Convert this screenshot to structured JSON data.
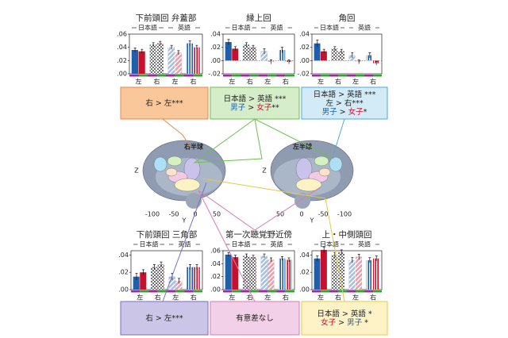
{
  "chart_data": [
    {
      "type": "bar",
      "title": "下前頭回 弁蓋部",
      "groups": [
        "日本語",
        "英語"
      ],
      "categories": [
        "左",
        "右",
        "左",
        "右"
      ],
      "series": [
        {
          "color": "#1f5fa8",
          "values": [
            0.036,
            0.044,
            0.04,
            0.046
          ],
          "errors": [
            0.003,
            0.003,
            0.003,
            0.004
          ]
        },
        {
          "color": "#c8102e",
          "values": [
            0.034,
            0.046,
            0.032,
            0.04
          ],
          "errors": [
            0.003,
            0.003,
            0.003,
            0.003
          ]
        }
      ],
      "ylim": [
        0,
        0.06
      ],
      "yticks": [
        {
          "value": 0,
          "label": ".00"
        },
        {
          "value": 0.02,
          "label": ".02"
        },
        {
          "value": 0.04,
          "label": ".04"
        },
        {
          "value": 0.06,
          "label": ".06"
        }
      ]
    },
    {
      "type": "bar",
      "title": "縁上回",
      "groups": [
        "日本語",
        "英語"
      ],
      "categories": [
        "左",
        "右",
        "左",
        "右"
      ],
      "series": [
        {
          "color": "#1f5fa8",
          "values": [
            0.028,
            0.024,
            0.014,
            0.016
          ],
          "errors": [
            0.004,
            0.003,
            0.004,
            0.004
          ]
        },
        {
          "color": "#c8102e",
          "values": [
            0.018,
            0.02,
            -0.002,
            -0.002
          ],
          "errors": [
            0.003,
            0.003,
            0.003,
            0.003
          ]
        }
      ],
      "ylim": [
        -0.02,
        0.04
      ],
      "yticks": [
        {
          "value": -0.02,
          "label": "-.02"
        },
        {
          "value": 0,
          "label": ".00"
        },
        {
          "value": 0.02,
          "label": ".02"
        },
        {
          "value": 0.04,
          "label": ".04"
        }
      ]
    },
    {
      "type": "bar",
      "title": "角回",
      "groups": [
        "日本語",
        "英語"
      ],
      "categories": [
        "左",
        "右",
        "左",
        "右"
      ],
      "series": [
        {
          "color": "#1f5fa8",
          "values": [
            0.026,
            0.018,
            0.008,
            0.008
          ],
          "errors": [
            0.005,
            0.003,
            0.004,
            0.004
          ]
        },
        {
          "color": "#c8102e",
          "values": [
            0.014,
            0.014,
            -0.002,
            -0.004
          ],
          "errors": [
            0.003,
            0.003,
            0.003,
            0.003
          ]
        }
      ],
      "ylim": [
        -0.02,
        0.04
      ],
      "yticks": [
        {
          "value": -0.02,
          "label": "-.02"
        },
        {
          "value": 0,
          "label": ".00"
        },
        {
          "value": 0.02,
          "label": ".02"
        },
        {
          "value": 0.04,
          "label": ".04"
        }
      ]
    },
    {
      "type": "bar",
      "title": "下前頭回 三角部",
      "groups": [
        "日本語",
        "英語"
      ],
      "categories": [
        "左",
        "右",
        "左",
        "右"
      ],
      "series": [
        {
          "color": "#1f5fa8",
          "values": [
            0.015,
            0.026,
            0.015,
            0.026
          ],
          "errors": [
            0.004,
            0.003,
            0.004,
            0.003
          ]
        },
        {
          "color": "#c8102e",
          "values": [
            0.02,
            0.029,
            0.01,
            0.026
          ],
          "errors": [
            0.003,
            0.003,
            0.003,
            0.003
          ]
        }
      ],
      "ylim": [
        0,
        0.045
      ],
      "yticks": [
        {
          "value": 0,
          "label": ".00"
        },
        {
          "value": 0.02,
          "label": ".02"
        },
        {
          "value": 0.04,
          "label": ".04"
        }
      ]
    },
    {
      "type": "bar",
      "title": "第一次聴覚野近傍",
      "groups": [
        "日本語",
        "英語"
      ],
      "categories": [
        "左",
        "右",
        "左",
        "右"
      ],
      "series": [
        {
          "color": "#1f5fa8",
          "values": [
            0.054,
            0.052,
            0.052,
            0.048
          ],
          "errors": [
            0.003,
            0.003,
            0.003,
            0.003
          ]
        },
        {
          "color": "#c8102e",
          "values": [
            0.05,
            0.05,
            0.046,
            0.046
          ],
          "errors": [
            0.003,
            0.003,
            0.003,
            0.003
          ]
        }
      ],
      "ylim": [
        0,
        0.06
      ],
      "yticks": [
        {
          "value": 0,
          "label": ".00"
        },
        {
          "value": 0.02,
          "label": ".02"
        },
        {
          "value": 0.04,
          "label": ".04"
        },
        {
          "value": 0.06,
          "label": ".06"
        }
      ]
    },
    {
      "type": "bar",
      "title": "上・中側頭回",
      "groups": [
        "日本語",
        "英語"
      ],
      "categories": [
        "左",
        "右",
        "左",
        "右"
      ],
      "series": [
        {
          "color": "#1f5fa8",
          "values": [
            0.036,
            0.04,
            0.034,
            0.034
          ],
          "errors": [
            0.003,
            0.003,
            0.003,
            0.003
          ]
        },
        {
          "color": "#c8102e",
          "values": [
            0.046,
            0.043,
            0.038,
            0.036
          ],
          "errors": [
            0.003,
            0.003,
            0.003,
            0.003
          ]
        }
      ],
      "ylim": [
        0,
        0.045
      ],
      "yticks": [
        {
          "value": 0,
          "label": ".00"
        },
        {
          "value": 0.02,
          "label": ".02"
        },
        {
          "value": 0.04,
          "label": ".04"
        }
      ]
    }
  ],
  "boxes": [
    {
      "color": "#f9c79a",
      "border": "#e08a4a",
      "lines": [
        [
          {
            "text": "右 > 左***",
            "color": "#222"
          }
        ]
      ]
    },
    {
      "color": "#d6edc9",
      "border": "#6cbf50",
      "lines": [
        [
          {
            "text": "日本語 > 英語 ***",
            "color": "#222"
          }
        ],
        [
          {
            "text": "男子",
            "color": "#1f5fa8"
          },
          {
            "text": " > ",
            "color": "#222"
          },
          {
            "text": "女子",
            "color": "#c8102e"
          },
          {
            "text": "**",
            "color": "#222"
          }
        ]
      ]
    },
    {
      "color": "#d2ebf6",
      "border": "#4fa9d6",
      "lines": [
        [
          {
            "text": "日本語 > 英語 ***",
            "color": "#222"
          }
        ],
        [
          {
            "text": "左 > 右***",
            "color": "#222"
          }
        ],
        [
          {
            "text": "男子",
            "color": "#1f5fa8"
          },
          {
            "text": " > ",
            "color": "#222"
          },
          {
            "text": "女子",
            "color": "#c8102e"
          },
          {
            "text": "*",
            "color": "#222"
          }
        ]
      ]
    },
    {
      "color": "#cbc6e8",
      "border": "#7b6fc0",
      "lines": [
        [
          {
            "text": "右 > 左***",
            "color": "#222"
          }
        ]
      ]
    },
    {
      "color": "#f2d0e7",
      "border": "#d67cb8",
      "lines": [
        [
          {
            "text": "有意差なし",
            "color": "#222"
          }
        ]
      ]
    },
    {
      "color": "#fdf3c6",
      "border": "#e6c84a",
      "lines": [
        [
          {
            "text": "日本語 > 英語 *",
            "color": "#222"
          }
        ],
        [
          {
            "text": "女子",
            "color": "#c8102e"
          },
          {
            "text": " > ",
            "color": "#222"
          },
          {
            "text": "男子",
            "color": "#1f5fa8"
          },
          {
            "text": " *",
            "color": "#222"
          }
        ]
      ]
    }
  ],
  "brains": [
    {
      "label": "右半球",
      "label_color": "#2e9b2e",
      "xticks": [
        "-100",
        "-50",
        "0",
        "50"
      ],
      "xlabel": "Y",
      "zlabel": "Z"
    },
    {
      "label": "左半球",
      "label_color": "#8a2a9a",
      "xticks": [
        "50",
        "0",
        "-50",
        "-100"
      ],
      "xlabel": "Y",
      "zlabel": "Z"
    }
  ]
}
